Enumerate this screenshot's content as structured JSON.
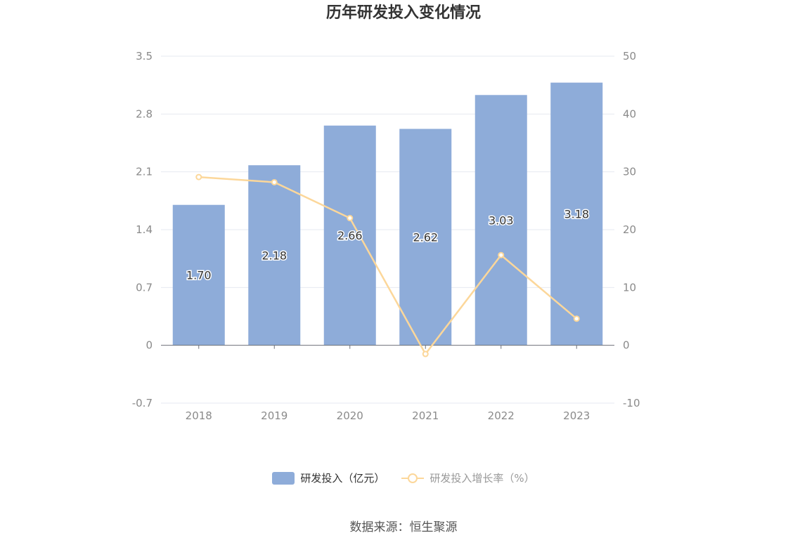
{
  "chart_data": {
    "type": "bar",
    "title": "历年研发投入变化情况",
    "categories": [
      "2018",
      "2019",
      "2020",
      "2021",
      "2022",
      "2023"
    ],
    "series": [
      {
        "name": "研发投入（亿元）",
        "type": "bar",
        "axis": "left",
        "values": [
          1.7,
          2.18,
          2.66,
          2.62,
          3.03,
          3.18
        ],
        "labels": [
          "1.70",
          "2.18",
          "2.66",
          "2.62",
          "3.03",
          "3.18"
        ],
        "color": "#8eacd9"
      },
      {
        "name": "研发投入增长率（%）",
        "type": "line",
        "axis": "right",
        "values": [
          29.1,
          28.2,
          22.0,
          -1.5,
          15.6,
          4.6
        ],
        "color": "#fcd79a"
      }
    ],
    "y_left": {
      "ylim": [
        -0.7,
        3.5
      ],
      "ticks": [
        "3.5",
        "2.8",
        "2.1",
        "1.4",
        "0.7",
        "0",
        "-0.7"
      ],
      "tick_values": [
        3.5,
        2.8,
        2.1,
        1.4,
        0.7,
        0,
        -0.7
      ]
    },
    "y_right": {
      "ylim": [
        -10,
        50
      ],
      "ticks": [
        "50",
        "40",
        "30",
        "20",
        "10",
        "0",
        "-10"
      ],
      "tick_values": [
        50,
        40,
        30,
        20,
        10,
        0,
        -10
      ]
    },
    "grid": true,
    "legend_position": "bottom-center"
  },
  "source": "数据来源：恒生聚源"
}
